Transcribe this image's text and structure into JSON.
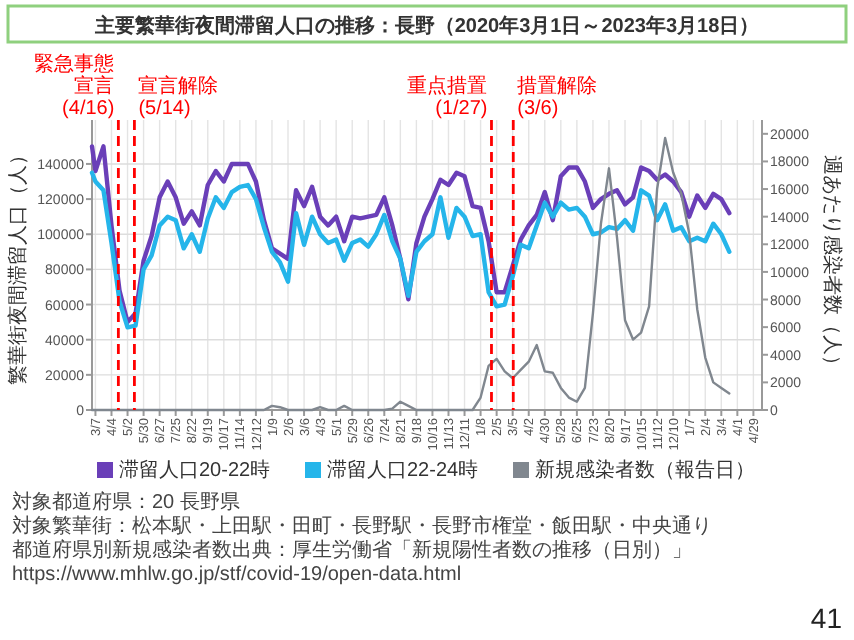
{
  "chart_data": {
    "type": "line",
    "title": "主要繁華街夜間滞留人口の推移：長野（2020年3月1日～2023年3月18日）",
    "ylabel": "繁華街夜間滞留人口（人）",
    "y2label": "週あたり感染者数（人）",
    "x": [
      "2020-03-01",
      "2020-03-07",
      "2020-03-21",
      "2020-04-04",
      "2020-04-18",
      "2020-05-02",
      "2020-05-16",
      "2020-05-30",
      "2020-06-13",
      "2020-06-27",
      "2020-07-11",
      "2020-07-25",
      "2020-08-08",
      "2020-08-22",
      "2020-09-05",
      "2020-09-19",
      "2020-10-03",
      "2020-10-17",
      "2020-10-31",
      "2020-11-14",
      "2020-11-28",
      "2020-12-12",
      "2020-12-26",
      "2021-01-09",
      "2021-01-23",
      "2021-02-06",
      "2021-02-20",
      "2021-03-06",
      "2021-03-20",
      "2021-04-03",
      "2021-04-17",
      "2021-05-01",
      "2021-05-15",
      "2021-05-29",
      "2021-06-12",
      "2021-06-26",
      "2021-07-10",
      "2021-07-24",
      "2021-08-07",
      "2021-08-21",
      "2021-09-04",
      "2021-09-18",
      "2021-10-02",
      "2021-10-16",
      "2021-10-30",
      "2021-11-13",
      "2021-11-27",
      "2021-12-11",
      "2021-12-25",
      "2022-01-08",
      "2022-01-22",
      "2022-02-05",
      "2022-02-19",
      "2022-03-05",
      "2022-03-19",
      "2022-04-02",
      "2022-04-16",
      "2022-04-30",
      "2022-05-14",
      "2022-05-28",
      "2022-06-11",
      "2022-06-25",
      "2022-07-09",
      "2022-07-23",
      "2022-08-06",
      "2022-08-20",
      "2022-09-03",
      "2022-09-17",
      "2022-10-01",
      "2022-10-15",
      "2022-10-29",
      "2022-11-12",
      "2022-11-26",
      "2022-12-10",
      "2022-12-24",
      "2023-01-07",
      "2023-01-21",
      "2023-02-04",
      "2023-02-18",
      "2023-03-04",
      "2023-03-18"
    ],
    "series": [
      {
        "name": "滞留人口20-22時",
        "color": "#6a3fb8",
        "values": [
          150000,
          136000,
          150000,
          105000,
          68000,
          50000,
          55000,
          85000,
          99000,
          121000,
          130000,
          121000,
          106000,
          113000,
          105000,
          128000,
          136000,
          130000,
          140000,
          140000,
          140000,
          130000,
          108000,
          92000,
          89000,
          86000,
          125000,
          116000,
          127000,
          110000,
          105000,
          110000,
          96000,
          110000,
          109000,
          110000,
          111000,
          121000,
          105000,
          86000,
          63000,
          95000,
          110000,
          120000,
          131000,
          128000,
          135000,
          133000,
          116000,
          115000,
          96000,
          67000,
          67000,
          82000,
          97000,
          105000,
          111000,
          124000,
          108000,
          133000,
          138000,
          138000,
          130000,
          115000,
          120000,
          123000,
          125000,
          117000,
          121000,
          138000,
          136000,
          131000,
          134000,
          130000,
          124000,
          110000,
          122000,
          115000,
          123000,
          120000,
          112000
        ]
      },
      {
        "name": "滞留人口22-24時",
        "color": "#25b5ea",
        "values": [
          135000,
          130000,
          125000,
          95000,
          62000,
          47000,
          48000,
          80000,
          88000,
          105000,
          110000,
          108000,
          92000,
          100000,
          90000,
          109000,
          121000,
          115000,
          124000,
          127000,
          128000,
          120000,
          104000,
          90000,
          84000,
          73000,
          112000,
          94000,
          110000,
          100000,
          95000,
          97000,
          85000,
          95000,
          97000,
          93000,
          100000,
          111000,
          96000,
          86000,
          65000,
          90000,
          96000,
          100000,
          121000,
          98000,
          115000,
          110000,
          99000,
          100000,
          67000,
          59000,
          60000,
          76000,
          94000,
          92000,
          105000,
          118000,
          110000,
          118000,
          114000,
          115000,
          110000,
          100000,
          101000,
          104000,
          103000,
          108000,
          102000,
          125000,
          122000,
          108000,
          117000,
          102000,
          104000,
          96000,
          98000,
          96000,
          106000,
          100000,
          90000
        ]
      },
      {
        "name": "新規感染者数（報告日）",
        "color": "#80878f",
        "axis": "y2",
        "values": [
          0,
          0,
          0,
          0,
          0,
          0,
          0,
          0,
          0,
          0,
          0,
          0,
          0,
          0,
          0,
          0,
          0,
          0,
          0,
          0,
          0,
          0,
          0,
          300,
          200,
          0,
          0,
          0,
          0,
          200,
          0,
          0,
          300,
          0,
          0,
          0,
          0,
          0,
          100,
          600,
          300,
          0,
          0,
          0,
          0,
          0,
          0,
          0,
          0,
          900,
          3200,
          3700,
          2800,
          2300,
          2900,
          3500,
          4700,
          2800,
          2700,
          1600,
          900,
          600,
          1600,
          7000,
          13500,
          17500,
          12500,
          6500,
          5100,
          5600,
          7500,
          16000,
          19700,
          17200,
          15700,
          12800,
          7300,
          3800,
          2000,
          1600,
          1200
        ]
      }
    ],
    "xlim": [
      "2020-03-01",
      "2023-05-14"
    ],
    "xticks": [
      {
        "value": "2020-03-07",
        "label": "3/7"
      },
      {
        "value": "2020-04-04",
        "label": "4/4"
      },
      {
        "value": "2020-05-02",
        "label": "5/2"
      },
      {
        "value": "2020-05-30",
        "label": "5/30"
      },
      {
        "value": "2020-06-27",
        "label": "6/27"
      },
      {
        "value": "2020-07-25",
        "label": "7/25"
      },
      {
        "value": "2020-08-22",
        "label": "8/22"
      },
      {
        "value": "2020-09-19",
        "label": "9/19"
      },
      {
        "value": "2020-10-17",
        "label": "10/17"
      },
      {
        "value": "2020-11-14",
        "label": "11/14"
      },
      {
        "value": "2020-12-12",
        "label": "12/12"
      },
      {
        "value": "2021-01-09",
        "label": "1/9"
      },
      {
        "value": "2021-02-06",
        "label": "2/6"
      },
      {
        "value": "2021-03-06",
        "label": "3/6"
      },
      {
        "value": "2021-04-03",
        "label": "4/3"
      },
      {
        "value": "2021-05-01",
        "label": "5/1"
      },
      {
        "value": "2021-05-29",
        "label": "5/29"
      },
      {
        "value": "2021-06-26",
        "label": "6/26"
      },
      {
        "value": "2021-07-24",
        "label": "7/24"
      },
      {
        "value": "2021-08-21",
        "label": "8/21"
      },
      {
        "value": "2021-09-18",
        "label": "9/18"
      },
      {
        "value": "2021-10-16",
        "label": "10/16"
      },
      {
        "value": "2021-11-13",
        "label": "11/13"
      },
      {
        "value": "2021-12-11",
        "label": "12/11"
      },
      {
        "value": "2022-01-08",
        "label": "1/8"
      },
      {
        "value": "2022-02-05",
        "label": "2/5"
      },
      {
        "value": "2022-03-05",
        "label": "3/5"
      },
      {
        "value": "2022-04-02",
        "label": "4/2"
      },
      {
        "value": "2022-04-30",
        "label": "4/30"
      },
      {
        "value": "2022-05-28",
        "label": "5/28"
      },
      {
        "value": "2022-06-25",
        "label": "6/25"
      },
      {
        "value": "2022-07-23",
        "label": "7/23"
      },
      {
        "value": "2022-08-20",
        "label": "8/20"
      },
      {
        "value": "2022-09-17",
        "label": "9/17"
      },
      {
        "value": "2022-10-15",
        "label": "10/15"
      },
      {
        "value": "2022-11-12",
        "label": "11/12"
      },
      {
        "value": "2022-12-10",
        "label": "12/10"
      },
      {
        "value": "2023-01-07",
        "label": "1/7"
      },
      {
        "value": "2023-02-04",
        "label": "2/4"
      },
      {
        "value": "2023-03-04",
        "label": "3/4"
      },
      {
        "value": "2023-04-01",
        "label": "4/1"
      },
      {
        "value": "2023-04-29",
        "label": "4/29"
      }
    ],
    "ylim": [
      0,
      165000
    ],
    "yticks": [
      0,
      20000,
      40000,
      60000,
      80000,
      100000,
      120000,
      140000
    ],
    "y2lim": [
      0,
      21000
    ],
    "y2ticks": [
      0,
      2000,
      4000,
      6000,
      8000,
      10000,
      12000,
      14000,
      16000,
      18000,
      20000
    ],
    "ref_lines": [
      {
        "axis": "x",
        "value": "2020-04-16",
        "label": "緊急事態宣言(4/16)",
        "color": "#ff0000",
        "line_style": "dashed"
      },
      {
        "axis": "x",
        "value": "2020-05-14",
        "label": "宣言解除(5/14)",
        "color": "#ff0000",
        "line_style": "dashed"
      },
      {
        "axis": "x",
        "value": "2022-01-27",
        "label": "重点措置(1/27)",
        "color": "#ff0000",
        "line_style": "dashed"
      },
      {
        "axis": "x",
        "value": "2022-03-06",
        "label": "措置解除(3/6)",
        "color": "#ff0000",
        "line_style": "dashed"
      }
    ],
    "grid": true,
    "legend": "bottom",
    "annotations": [
      "対象都道府県：20 長野県",
      "対象繁華街：松本駅・上田駅・田町・長野駅・長野市権堂・飯田駅・中央通り",
      "都道府県別新規感染者数出典：厚生労働省「新規陽性者数の推移（日別）」",
      "https://www.mhlw.go.jp/stf/covid-19/open-data.html",
      "41"
    ]
  }
}
